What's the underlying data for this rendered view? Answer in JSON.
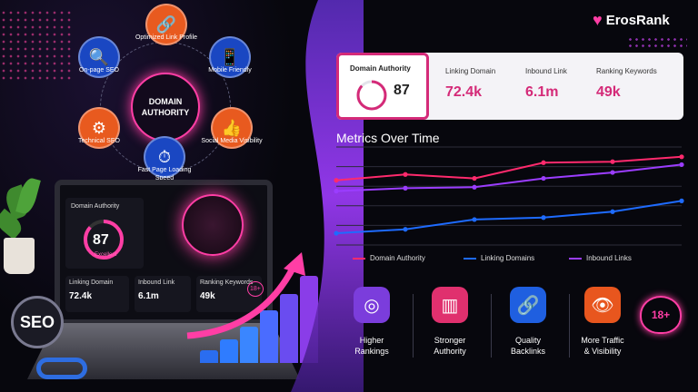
{
  "brand": {
    "name": "ErosRank"
  },
  "diagram": {
    "hub_line1": "DOMAIN",
    "hub_line2": "AUTHORITY",
    "nodes": [
      {
        "label": "Optimized Link Profile",
        "icon": "link-icon"
      },
      {
        "label": "Mobile Friendly",
        "icon": "mobile-check-icon"
      },
      {
        "label": "Social Media Visibility",
        "icon": "thumbs-up-icon"
      },
      {
        "label": "Fast Page Loading Speed",
        "icon": "speedometer-icon"
      },
      {
        "label": "Technical SEO",
        "icon": "gear-icon"
      },
      {
        "label": "On-page SEO",
        "icon": "page-search-icon"
      }
    ]
  },
  "laptop": {
    "da_title": "Domain Authority",
    "da_value": "87",
    "da_status": "Excellent",
    "linking_title": "Linking Domain",
    "linking_value": "72.4k",
    "inbound_title": "Inbound Link",
    "inbound_value": "6.1m",
    "keywords_title": "Ranking Keywords",
    "keywords_value": "49k",
    "age_badge": "18+"
  },
  "seo_badge": "SEO",
  "kpis": {
    "domain_authority": {
      "title": "Domain Authority",
      "value": "87",
      "fill": 0.87
    },
    "linking_domain": {
      "title": "Linking Domain",
      "value": "72.4k"
    },
    "inbound_link": {
      "title": "Inbound Link",
      "value": "6.1m"
    },
    "ranking_keywords": {
      "title": "Ranking Keywords",
      "value": "49k"
    }
  },
  "chart_data": {
    "type": "line",
    "title": "Metrics Over Time",
    "x": [
      1,
      2,
      3,
      4,
      5,
      6
    ],
    "ylim": [
      0,
      10
    ],
    "grid": true,
    "legend_position": "bottom",
    "series": [
      {
        "name": "Domain Authority",
        "color": "#ff2a6d",
        "values": [
          6.6,
          7.2,
          6.8,
          8.4,
          8.5,
          9.0
        ]
      },
      {
        "name": "Linking Domains",
        "color": "#1e6bff",
        "values": [
          1.2,
          1.6,
          2.6,
          2.8,
          3.4,
          4.5
        ]
      },
      {
        "name": "Inbound Links",
        "color": "#9b3dff",
        "values": [
          5.5,
          5.8,
          5.9,
          6.8,
          7.4,
          8.2
        ]
      }
    ]
  },
  "features": [
    {
      "label1": "Higher",
      "label2": "Rankings",
      "icon": "target-icon",
      "color": "#7b3ddc"
    },
    {
      "label1": "Stronger",
      "label2": "Authority",
      "icon": "bar-chart-icon",
      "color": "#e0306e"
    },
    {
      "label1": "Quality",
      "label2": "Backlinks",
      "icon": "chain-link-icon",
      "color": "#1f5fe0"
    },
    {
      "label1": "More Traffic",
      "label2": "& Visibility",
      "icon": "eye-icon",
      "color": "#e8561e"
    }
  ],
  "age_badge": "18+"
}
